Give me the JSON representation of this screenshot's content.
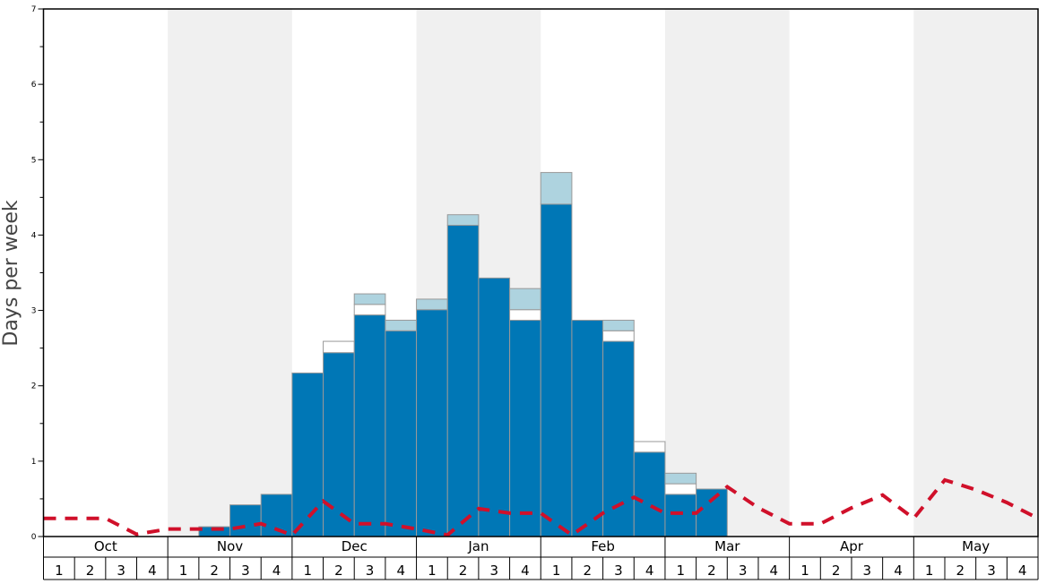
{
  "chart_data": {
    "type": "bar",
    "title": "",
    "xlabel": "",
    "ylabel": "Days per week",
    "ylim": [
      0,
      7
    ],
    "yticks": [
      "0",
      "1",
      "2",
      "3",
      "4",
      "5",
      "6",
      "7"
    ],
    "months": [
      "Oct",
      "Nov",
      "Dec",
      "Jan",
      "Feb",
      "Mar",
      "Apr",
      "May"
    ],
    "week_labels": [
      "1",
      "2",
      "3",
      "4"
    ],
    "colors": {
      "primary": "#0077b6",
      "secondary": "#ffffff",
      "tertiary": "#aed3df",
      "dashed_line": "#d0102a",
      "band": "#f0f0f0"
    },
    "series": [
      {
        "values": [
          0,
          0,
          0,
          0,
          0,
          0.13,
          0.42,
          0.56,
          2.17,
          2.44,
          2.94,
          2.73,
          3.01,
          4.13,
          3.43,
          2.87,
          4.41,
          2.87,
          2.59,
          1.12,
          0.56,
          0.63,
          0,
          0,
          0,
          0,
          0,
          0,
          0,
          0,
          0,
          0
        ]
      },
      {
        "values": [
          0,
          0,
          0,
          0,
          0,
          0,
          0,
          0,
          0,
          0.15,
          0.14,
          0,
          0,
          0,
          0,
          0.14,
          0,
          0,
          0.14,
          0.14,
          0.14,
          0,
          0,
          0,
          0,
          0,
          0,
          0,
          0,
          0,
          0,
          0
        ]
      },
      {
        "values": [
          0,
          0,
          0,
          0,
          0,
          0,
          0,
          0,
          0,
          0,
          0.14,
          0.14,
          0.14,
          0.14,
          0,
          0.28,
          0.42,
          0,
          0.14,
          0,
          0.14,
          0,
          0,
          0,
          0,
          0,
          0,
          0,
          0,
          0,
          0,
          0
        ]
      },
      {
        "type": "line",
        "values": [
          0.24,
          0.24,
          0.24,
          0.03,
          0.1,
          0.1,
          0.1,
          0.17,
          0.02,
          0.47,
          0.17,
          0.17,
          0.1,
          0.02,
          0.37,
          0.31,
          0.31,
          0.02,
          0.31,
          0.52,
          0.31,
          0.31,
          0.66,
          0.38,
          0.17,
          0.17,
          0.38,
          0.55,
          0.24,
          0.75,
          0.62,
          0.45,
          0.24
        ]
      }
    ],
    "grid": false
  }
}
